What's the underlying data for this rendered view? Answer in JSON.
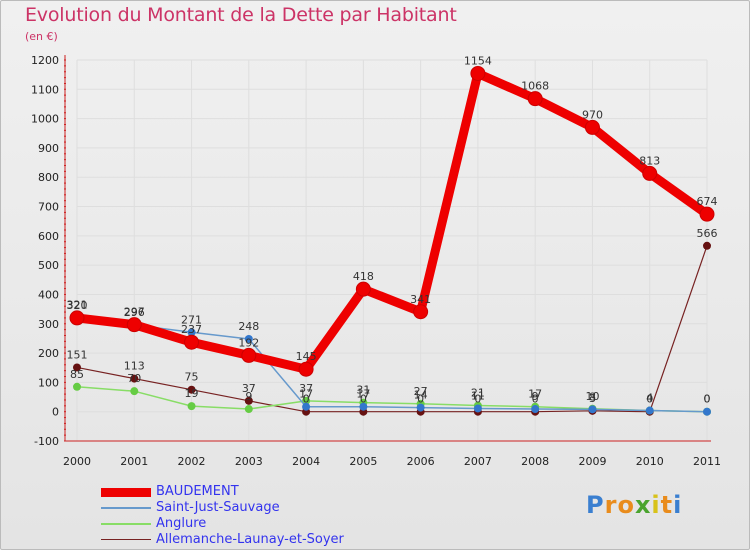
{
  "chart_data": {
    "type": "line",
    "title": "Evolution du Montant de la Dette par Habitant",
    "subtitle": "(en €)",
    "x": [
      "2000",
      "2001",
      "2002",
      "2003",
      "2004",
      "2005",
      "2006",
      "2007",
      "2008",
      "2009",
      "2010",
      "2011"
    ],
    "ylim": [
      -100,
      1200
    ],
    "yticks": [
      -100,
      0,
      100,
      200,
      300,
      400,
      500,
      600,
      700,
      800,
      900,
      1000,
      1100,
      1200
    ],
    "series": [
      {
        "name": "BAUDEMENT",
        "color": "#ee0000",
        "dot": "#ee0000",
        "values": [
          320,
          297,
          237,
          192,
          145,
          418,
          341,
          1154,
          1068,
          970,
          813,
          674
        ]
      },
      {
        "name": "Saint-Just-Sauvage",
        "color": "#6699cc",
        "dot": "#3377cc",
        "values": [
          321,
          296,
          271,
          248,
          17,
          17,
          14,
          11,
          9,
          8,
          4,
          0
        ]
      },
      {
        "name": "Anglure",
        "color": "#88dd66",
        "dot": "#66cc44",
        "values": [
          85,
          70,
          19,
          9,
          37,
          31,
          27,
          21,
          17,
          10,
          4,
          0
        ]
      },
      {
        "name": "Allemanche-Launay-et-Soyer",
        "color": "#772222",
        "dot": "#661111",
        "values": [
          151,
          113,
          75,
          37,
          0,
          0,
          0,
          0,
          0,
          3,
          0,
          566
        ]
      }
    ]
  },
  "brand": {
    "letters": [
      "P",
      "r",
      "o",
      "x",
      "i",
      "t",
      "i"
    ]
  }
}
